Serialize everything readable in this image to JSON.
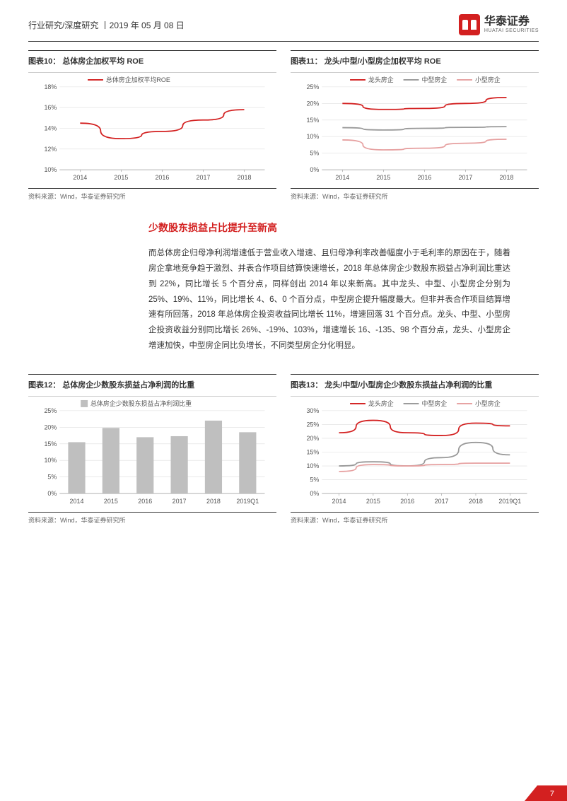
{
  "header": {
    "breadcrumb": "行业研究/深度研究 丨2019 年 05 月 08 日",
    "logo_cn": "华泰证券",
    "logo_en": "HUATAI SECURITIES"
  },
  "chart10": {
    "type": "line",
    "title": "图表10：  总体房企加权平均 ROE",
    "legend": [
      "总体房企加权平均ROE"
    ],
    "legend_colors": [
      "#d32020"
    ],
    "categories": [
      "2014",
      "2015",
      "2016",
      "2017",
      "2018"
    ],
    "series": [
      [
        14.5,
        13.0,
        13.7,
        14.8,
        15.8
      ]
    ],
    "colors": [
      "#d32020"
    ],
    "ylim": [
      10,
      18
    ],
    "ytick_step": 2,
    "y_format": "percent",
    "grid_color": "#dddddd",
    "axis_fontsize": 9,
    "source": "资料来源：Wind，华泰证券研究所"
  },
  "chart11": {
    "type": "line",
    "title": "图表11：  龙头/中型/小型房企加权平均 ROE",
    "legend": [
      "龙头房企",
      "中型房企",
      "小型房企"
    ],
    "legend_colors": [
      "#d32020",
      "#999999",
      "#e6a0a0"
    ],
    "categories": [
      "2014",
      "2015",
      "2016",
      "2017",
      "2018"
    ],
    "series": [
      [
        20.0,
        18.2,
        18.5,
        20.0,
        21.8
      ],
      [
        12.7,
        12.0,
        12.5,
        12.8,
        13.0
      ],
      [
        9.0,
        6.0,
        6.5,
        8.0,
        9.2
      ]
    ],
    "colors": [
      "#d32020",
      "#999999",
      "#e6a0a0"
    ],
    "ylim": [
      0,
      25
    ],
    "ytick_step": 5,
    "y_format": "percent",
    "grid_color": "#dddddd",
    "axis_fontsize": 9,
    "source": "资料来源：Wind，华泰证券研究所"
  },
  "section_heading": "少数股东损益占比提升至新高",
  "paragraph": "而总体房企归母净利润增速低于营业收入增速、且归母净利率改善幅度小于毛利率的原因在于，随着房企拿地竞争趋于激烈、并表合作项目结算快速增长，2018 年总体房企少数股东损益占净利润比重达到 22%，同比增长 5 个百分点，同样创出 2014 年以来新高。其中龙头、中型、小型房企分别为 25%、19%、11%，同比增长 4、6、0 个百分点，中型房企提升幅度最大。但非并表合作项目结算增速有所回落，2018 年总体房企投资收益同比增长 11%，增速回落 31 个百分点。龙头、中型、小型房企投资收益分别同比增长 26%、-19%、103%，增速增长 16、-135、98 个百分点，龙头、小型房企增速加快，中型房企同比负增长，不同类型房企分化明显。",
  "chart12": {
    "type": "bar",
    "title": "图表12：  总体房企少数股东损益占净利润的比重",
    "legend": [
      "总体房企少数股东损益占净利润比重"
    ],
    "legend_colors": [
      "#bfbfbf"
    ],
    "categories": [
      "2014",
      "2015",
      "2016",
      "2017",
      "2018",
      "2019Q1"
    ],
    "values": [
      15.5,
      19.8,
      17.0,
      17.3,
      22.0,
      18.5
    ],
    "bar_color": "#bfbfbf",
    "ylim": [
      0,
      25
    ],
    "ytick_step": 5,
    "y_format": "percent",
    "bar_width": 0.5,
    "grid_color": "#dddddd",
    "axis_fontsize": 9,
    "source": "资料来源：Wind，华泰证券研究所"
  },
  "chart13": {
    "type": "line",
    "title": "图表13：  龙头/中型/小型房企少数股东损益占净利润的比重",
    "legend": [
      "龙头房企",
      "中型房企",
      "小型房企"
    ],
    "legend_colors": [
      "#d32020",
      "#999999",
      "#e6a0a0"
    ],
    "categories": [
      "2014",
      "2015",
      "2016",
      "2017",
      "2018",
      "2019Q1"
    ],
    "series": [
      [
        22.0,
        26.5,
        22.0,
        21.0,
        25.5,
        24.5
      ],
      [
        10.0,
        11.5,
        10.0,
        13.0,
        18.5,
        14.0
      ],
      [
        8.0,
        10.5,
        10.0,
        10.5,
        11.0,
        11.0
      ]
    ],
    "colors": [
      "#d32020",
      "#999999",
      "#e6a0a0"
    ],
    "ylim": [
      0,
      30
    ],
    "ytick_step": 5,
    "y_format": "percent",
    "grid_color": "#dddddd",
    "axis_fontsize": 9,
    "source": "资料来源：Wind，华泰证券研究所"
  },
  "page_number": "7"
}
